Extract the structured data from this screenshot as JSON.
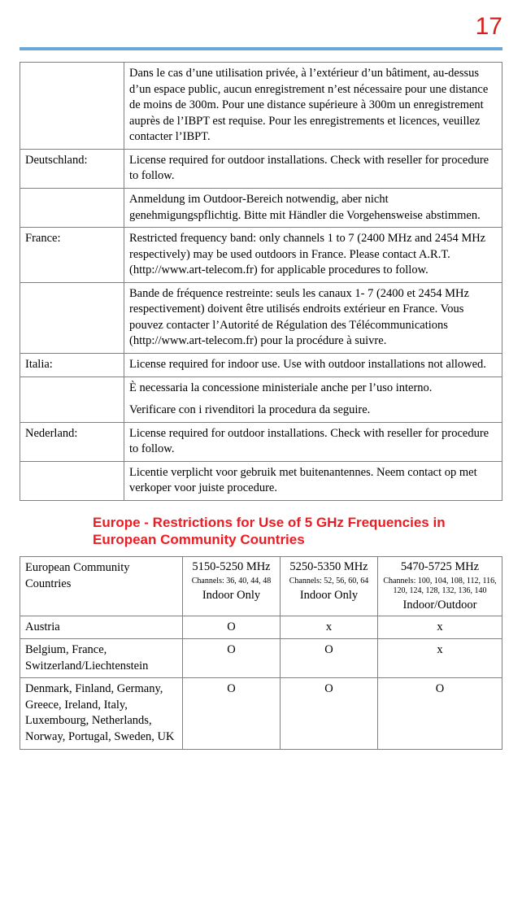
{
  "page_number": "17",
  "colors": {
    "accent_red": "#ec1c24",
    "border_gray": "#808080",
    "rule_blue": "#6aa7d6"
  },
  "regtable": {
    "rows": [
      {
        "country": "",
        "text": "Dans le cas d’une utilisation privée, à l’extérieur d’un bâtiment, au-dessus d’un espace public, aucun enregistrement n’est nécessaire pour une distance de moins de 300m. Pour une distance supérieure à 300m un enregistrement auprès de l’IBPT est requise. Pour les enregistrements et licences, veuillez contacter l’IBPT."
      },
      {
        "country": "Deutschland:",
        "text": "License required for outdoor installations. Check with reseller for procedure to follow."
      },
      {
        "country": "",
        "text": "Anmeldung im Outdoor-Bereich notwendig, aber nicht genehmigungspflichtig. Bitte mit Händler die Vorgehensweise abstimmen."
      },
      {
        "country": "France:",
        "text": "Restricted frequency band: only channels 1 to 7 (2400 MHz and 2454 MHz respectively) may be used outdoors in France. Please contact A.R.T. (http://www.art-telecom.fr) for applicable procedures to follow."
      },
      {
        "country": "",
        "text": "Bande de fréquence restreinte: seuls les canaux 1- 7 (2400 et 2454 MHz respectivement) doivent être utilisés endroits extérieur en France. Vous pouvez contacter l’Autorité de Régulation des Télécommunications (http://www.art-telecom.fr) pour la procédure à suivre."
      },
      {
        "country": "Italia:",
        "text": "License required for indoor use. Use with outdoor installations not allowed."
      },
      {
        "country": "",
        "text": "È necessaria la concessione ministeriale anche per l’uso interno.\nVerificare con i rivenditori la procedura da seguire."
      },
      {
        "country": "Nederland:",
        "text": "License required for outdoor installations. Check with reseller for procedure to follow."
      },
      {
        "country": "",
        "text": "Licentie verplicht voor gebruik met buitenantennes. Neem contact op met verkoper voor juiste procedure."
      }
    ]
  },
  "section_heading": "Europe - Restrictions for Use of 5 GHz Frequencies in European Community Countries",
  "freqtable": {
    "header_country": "European Community Countries",
    "bands": [
      {
        "range": "5150-5250 MHz",
        "channels": "Channels: 36, 40, 44, 48",
        "inout": "Indoor Only"
      },
      {
        "range": "5250-5350 MHz",
        "channels": "Channels: 52, 56, 60, 64",
        "inout": "Indoor Only"
      },
      {
        "range": "5470-5725 MHz",
        "channels": "Channels: 100, 104, 108, 112, 116, 120, 124, 128, 132, 136, 140",
        "inout": "Indoor/Outdoor"
      }
    ],
    "rows": [
      {
        "country": "Austria",
        "vals": [
          "O",
          "x",
          "x"
        ]
      },
      {
        "country": "Belgium, France, Switzerland/Liechtenstein",
        "vals": [
          "O",
          "O",
          "x"
        ]
      },
      {
        "country": "Denmark, Finland, Germany, Greece, Ireland, Italy, Luxembourg, Netherlands, Norway, Portugal, Sweden, UK",
        "vals": [
          "O",
          "O",
          "O"
        ]
      }
    ]
  }
}
